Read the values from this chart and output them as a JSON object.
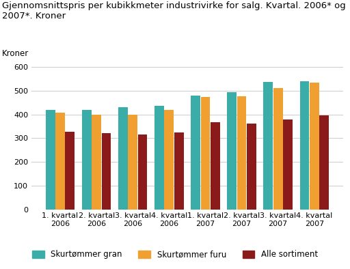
{
  "title": "Gjennomsnittspris per kubikkmeter industrivirke for salg. Kvartal. 2006* og\n2007*. Kroner",
  "ylabel": "Kroner",
  "categories": [
    "1. kvartal\n2006",
    "2. kvartal\n2006",
    "3. kvartal\n2006",
    "4. kvartal\n2006",
    "1. kvartal\n2007",
    "2. kvartal\n2007",
    "3. kvartal\n2007",
    "4. kvartal\n2007"
  ],
  "series": {
    "Skurtømmer gran": [
      420,
      418,
      430,
      435,
      480,
      492,
      537,
      538
    ],
    "Skurtømmer furu": [
      407,
      400,
      398,
      420,
      473,
      476,
      511,
      533
    ],
    "Alle sortiment": [
      328,
      322,
      315,
      323,
      368,
      361,
      380,
      397
    ]
  },
  "colors": {
    "Skurtømmer gran": "#3aada8",
    "Skurtømmer furu": "#f0a030",
    "Alle sortiment": "#8b1a1a"
  },
  "ylim": [
    0,
    620
  ],
  "yticks": [
    0,
    100,
    200,
    300,
    400,
    500,
    600
  ],
  "bar_width": 0.27,
  "background_color": "#ffffff",
  "plot_bg_color": "#ffffff",
  "grid_color": "#cccccc",
  "title_fontsize": 9.5,
  "axis_fontsize": 8.5,
  "tick_fontsize": 8,
  "legend_fontsize": 8.5
}
